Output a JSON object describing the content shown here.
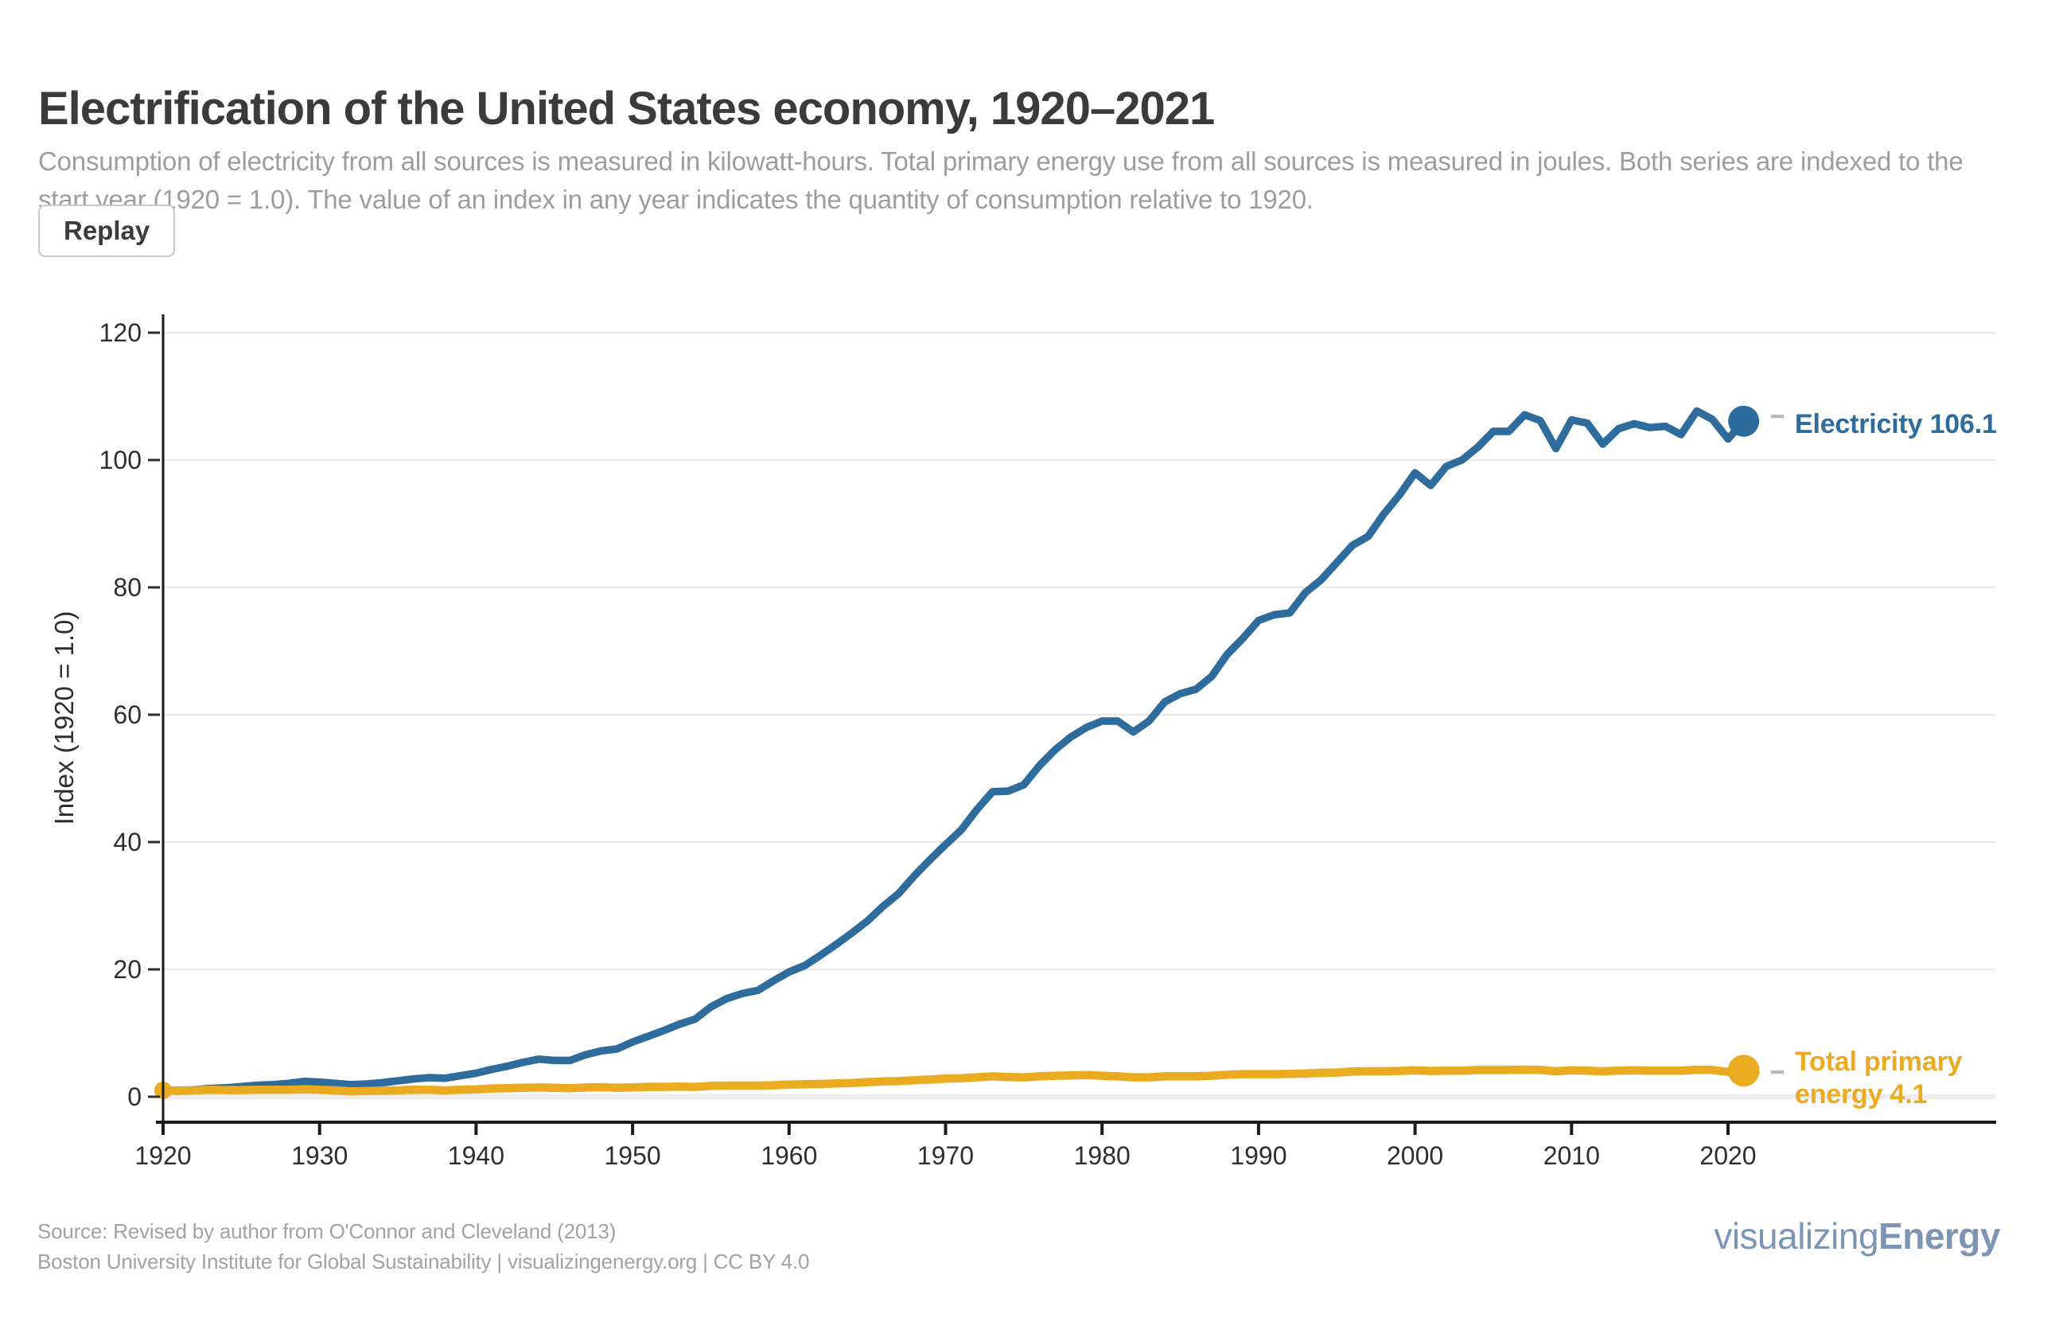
{
  "header": {
    "title": "Electrification of the United States economy, 1920–2021",
    "subtitle": "Consumption of electricity from all sources is measured in kilowatt-hours. Total primary energy use from all sources is measured in joules. Both series are indexed to the start year (1920 = 1.0). The value of an index in any year indicates the quantity of consumption relative to 1920.",
    "replay_label": "Replay"
  },
  "chart_data": {
    "type": "line",
    "title": "Electrification of the United States economy, 1920–2021",
    "xlabel": "",
    "ylabel": "Index (1920 = 1.0)",
    "start_year": 1920,
    "end_year": 2021,
    "x_ticks": [
      1920,
      1930,
      1940,
      1950,
      1960,
      1970,
      1980,
      1990,
      2000,
      2010,
      2020
    ],
    "y_ticks": [
      0,
      20,
      40,
      60,
      80,
      100,
      120
    ],
    "ylim": [
      0,
      125
    ],
    "grid": true,
    "legend_position": "right-of-line-ends",
    "colors": {
      "electricity": "#2D6C9D",
      "total_primary_energy": "#EBAB21",
      "gridline": "#E9E9E9",
      "zero_gridline": "#EDEDED",
      "axis": "#1B1B1B",
      "tick_text": "#2E2E2E",
      "label_dash": "#B5B5B5"
    },
    "series": [
      {
        "name": "Electricity",
        "color": "#2D6C9D",
        "end_value": 106.1,
        "end_label": "Electricity 106.1",
        "values": [
          1.0,
          1.0,
          1.1,
          1.3,
          1.4,
          1.6,
          1.8,
          1.9,
          2.1,
          2.4,
          2.3,
          2.1,
          1.9,
          2.0,
          2.2,
          2.5,
          2.8,
          3.0,
          2.9,
          3.3,
          3.7,
          4.3,
          4.8,
          5.4,
          5.9,
          5.7,
          5.7,
          6.6,
          7.2,
          7.5,
          8.6,
          9.5,
          10.4,
          11.4,
          12.2,
          14.1,
          15.4,
          16.2,
          16.7,
          18.2,
          19.6,
          20.6,
          22.2,
          23.9,
          25.7,
          27.6,
          29.9,
          31.9,
          34.7,
          37.2,
          39.6,
          41.9,
          45.1,
          47.9,
          48.0,
          49.0,
          52.0,
          54.5,
          56.5,
          58.0,
          59.0,
          59.0,
          57.3,
          59.0,
          62.0,
          63.3,
          64.0,
          66.0,
          69.5,
          72.0,
          74.8,
          75.7,
          76.0,
          79.2,
          81.2,
          83.9,
          86.6,
          88.0,
          91.5,
          94.5,
          98.0,
          96.0,
          99.0,
          100.0,
          102.0,
          104.5,
          104.5,
          107.1,
          106.2,
          101.8,
          106.3,
          105.8,
          102.5,
          104.9,
          105.7,
          105.1,
          105.3,
          104.0,
          107.7,
          106.4,
          103.3,
          106.1
        ]
      },
      {
        "name": "Total primary energy",
        "color": "#EBAB21",
        "end_value": 4.1,
        "end_label_line1": "Total primary",
        "end_label_line2": "energy 4.1",
        "values": [
          1.0,
          0.9,
          1.0,
          1.1,
          1.05,
          1.05,
          1.1,
          1.1,
          1.1,
          1.15,
          1.1,
          1.0,
          0.85,
          0.9,
          0.95,
          1.0,
          1.1,
          1.1,
          1.0,
          1.1,
          1.15,
          1.3,
          1.35,
          1.4,
          1.45,
          1.4,
          1.35,
          1.45,
          1.5,
          1.4,
          1.45,
          1.55,
          1.55,
          1.6,
          1.55,
          1.7,
          1.75,
          1.75,
          1.75,
          1.8,
          1.9,
          1.95,
          2.0,
          2.1,
          2.15,
          2.3,
          2.4,
          2.45,
          2.6,
          2.7,
          2.85,
          2.9,
          3.05,
          3.2,
          3.1,
          3.05,
          3.2,
          3.3,
          3.35,
          3.4,
          3.3,
          3.2,
          3.05,
          3.05,
          3.2,
          3.2,
          3.2,
          3.3,
          3.45,
          3.55,
          3.55,
          3.55,
          3.6,
          3.65,
          3.75,
          3.8,
          3.95,
          4.0,
          4.0,
          4.05,
          4.15,
          4.05,
          4.1,
          4.1,
          4.2,
          4.2,
          4.2,
          4.25,
          4.2,
          4.0,
          4.15,
          4.1,
          4.0,
          4.1,
          4.15,
          4.1,
          4.1,
          4.1,
          4.25,
          4.2,
          3.9,
          4.1
        ]
      }
    ]
  },
  "footer": {
    "source_line1": "Source: Revised by author from O'Connor and Cleveland (2013)",
    "source_line2": "Boston University Institute for Global Sustainability | visualizingenergy.org | CC BY 4.0",
    "logo_regular": "visualizing",
    "logo_bold": "Energy"
  }
}
